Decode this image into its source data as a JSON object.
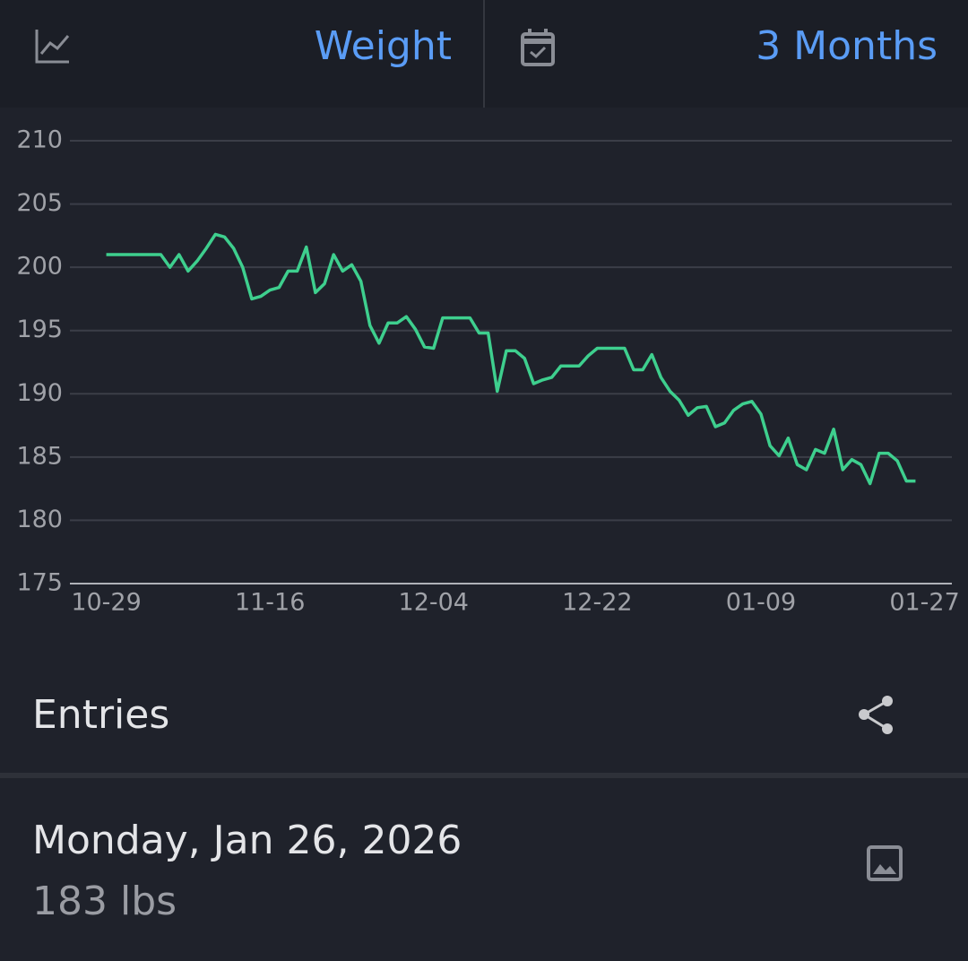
{
  "top_bar": {
    "metric": "Weight",
    "range": "3 Months"
  },
  "chart_data": {
    "type": "line",
    "x": [
      0,
      1,
      2,
      3,
      4,
      5,
      6,
      7,
      8,
      9,
      10,
      11,
      12,
      13,
      14,
      15,
      16,
      17,
      18,
      19,
      20,
      21,
      22,
      23,
      24,
      25,
      26,
      27,
      28,
      29,
      30,
      31,
      32,
      33,
      34,
      35,
      36,
      37,
      38,
      39,
      40,
      41,
      42,
      43,
      44,
      45,
      46,
      47,
      48,
      49,
      50,
      51,
      52,
      53,
      54,
      55,
      56,
      57,
      58,
      59,
      60,
      61,
      62,
      63,
      64,
      65,
      66,
      67,
      68,
      69,
      70,
      71,
      72,
      73,
      74,
      75,
      76,
      77,
      78,
      79,
      80,
      81,
      82,
      83,
      84,
      85,
      86,
      87,
      88,
      89
    ],
    "series": [
      {
        "name": "Weight",
        "color": "#3ecf8e",
        "values": [
          201,
          201,
          201,
          201,
          201,
          201,
          201,
          200,
          201,
          199.7,
          200.5,
          201.5,
          202.6,
          202.4,
          201.5,
          200,
          197.5,
          197.7,
          198.2,
          198.4,
          199.7,
          199.7,
          201.6,
          198,
          198.7,
          201,
          199.7,
          200.2,
          198.9,
          195.4,
          194,
          195.6,
          195.6,
          196.1,
          195.1,
          193.7,
          193.6,
          196,
          196,
          196,
          196,
          194.8,
          194.8,
          190.2,
          193.4,
          193.4,
          192.8,
          190.8,
          191.1,
          191.3,
          192.2,
          192.2,
          192.2,
          193,
          193.6,
          193.6,
          193.6,
          193.6,
          191.9,
          191.9,
          193.1,
          191.3,
          190.2,
          189.5,
          188.3,
          188.9,
          189,
          187.4,
          187.7,
          188.7,
          189.2,
          189.4,
          188.4,
          185.9,
          185.1,
          186.5,
          184.4,
          184,
          185.6,
          185.3,
          187.2,
          184,
          184.8,
          184.4,
          182.9,
          185.3,
          185.3,
          184.7,
          183.1,
          183.1
        ]
      }
    ],
    "xlim": [
      -4,
      93
    ],
    "xticks": [
      {
        "value": 0,
        "label": "10-29"
      },
      {
        "value": 18,
        "label": "11-16"
      },
      {
        "value": 36,
        "label": "12-04"
      },
      {
        "value": 54,
        "label": "12-22"
      },
      {
        "value": 72,
        "label": "01-09"
      },
      {
        "value": 90,
        "label": "01-27"
      }
    ],
    "ylim": [
      175,
      210
    ],
    "yticks": [
      175,
      180,
      185,
      190,
      195,
      200,
      205,
      210
    ],
    "grid": true
  },
  "entries": {
    "title": "Entries"
  },
  "entry": {
    "date": "Monday, Jan 26, 2026",
    "value": "183 lbs"
  }
}
